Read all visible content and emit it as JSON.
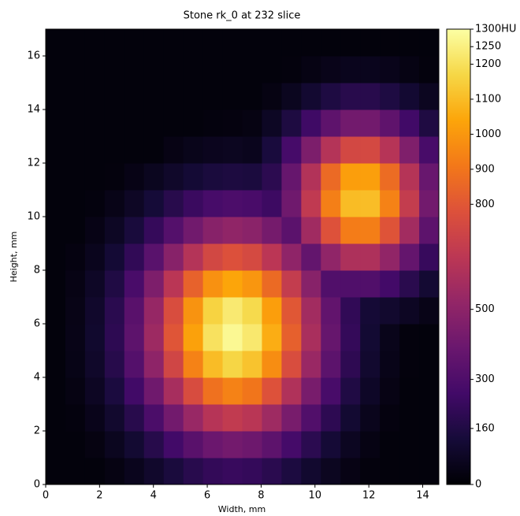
{
  "chart_data": {
    "type": "heatmap",
    "title": "Stone rk_0 at 232 slice",
    "xlabel": "Width, mm",
    "ylabel": "Height, mm",
    "xlim": [
      0,
      14.6
    ],
    "ylim": [
      0,
      17
    ],
    "xticks": [
      0,
      2,
      4,
      6,
      8,
      10,
      12,
      14
    ],
    "yticks": [
      0,
      2,
      4,
      6,
      8,
      10,
      12,
      14,
      16
    ],
    "colormap": "inferno",
    "zlim": [
      0,
      1300
    ],
    "colorbar_ticks": [
      0,
      160,
      300,
      500,
      800,
      900,
      1000,
      1100,
      1200,
      1250,
      {
        "value": 1300,
        "label": "1300HU"
      }
    ],
    "z": [
      [
        20,
        20,
        20,
        35,
        62,
        99,
        142,
        184,
        216,
        229,
        220,
        190,
        149,
        106,
        68,
        39,
        21,
        20,
        20,
        20
      ],
      [
        20,
        20,
        33,
        65,
        113,
        180,
        259,
        335,
        393,
        417,
        400,
        347,
        271,
        193,
        123,
        71,
        38,
        20,
        20,
        20
      ],
      [
        20,
        25,
        53,
        104,
        182,
        289,
        414,
        537,
        630,
        668,
        641,
        555,
        435,
        309,
        198,
        114,
        60,
        28,
        20,
        20
      ],
      [
        20,
        35,
        75,
        146,
        256,
        406,
        583,
        756,
        886,
        940,
        901,
        781,
        612,
        434,
        278,
        161,
        85,
        39,
        20,
        20
      ],
      [
        20,
        43,
        93,
        181,
        317,
        504,
        724,
        938,
        1100,
        1167,
        1119,
        970,
        760,
        539,
        345,
        200,
        105,
        49,
        21,
        20
      ],
      [
        20,
        47,
        102,
        198,
        347,
        552,
        792,
        1027,
        1204,
        1277,
        1225,
        1061,
        831,
        590,
        378,
        218,
        115,
        54,
        23,
        20
      ],
      [
        20,
        45,
        98,
        190,
        334,
        531,
        762,
        988,
        1159,
        1229,
        1179,
        1021,
        800,
        568,
        364,
        210,
        122,
        104,
        75,
        46
      ],
      [
        20,
        39,
        83,
        161,
        283,
        450,
        645,
        837,
        982,
        1041,
        998,
        865,
        678,
        481,
        308,
        307,
        308,
        262,
        189,
        116
      ],
      [
        20,
        29,
        62,
        120,
        211,
        336,
        482,
        625,
        733,
        777,
        745,
        646,
        506,
        366,
        510,
        603,
        605,
        515,
        372,
        228
      ],
      [
        20,
        20,
        41,
        79,
        139,
        221,
        317,
        412,
        483,
        512,
        491,
        425,
        341,
        560,
        781,
        923,
        926,
        788,
        569,
        348
      ],
      [
        20,
        20,
        24,
        46,
        80,
        127,
        182,
        236,
        277,
        294,
        282,
        244,
        406,
        667,
        930,
        1099,
        1103,
        939,
        678,
        415
      ],
      [
        20,
        20,
        20,
        23,
        41,
        65,
        93,
        121,
        141,
        150,
        144,
        194,
        377,
        619,
        863,
        1020,
        1023,
        871,
        629,
        385
      ],
      [
        20,
        20,
        20,
        20,
        20,
        20,
        40,
        55,
        64,
        68,
        62,
        140,
        272,
        447,
        624,
        737,
        740,
        630,
        455,
        278
      ],
      [
        20,
        20,
        20,
        20,
        20,
        20,
        20,
        20,
        25,
        27,
        35,
        79,
        153,
        251,
        351,
        415,
        416,
        354,
        256,
        156
      ],
      [
        20,
        20,
        20,
        20,
        20,
        20,
        20,
        20,
        20,
        20,
        20,
        35,
        67,
        110,
        154,
        182,
        182,
        155,
        112,
        69
      ],
      [
        20,
        20,
        20,
        20,
        20,
        20,
        20,
        20,
        20,
        20,
        20,
        20,
        23,
        37,
        52,
        62,
        62,
        53,
        38,
        23
      ],
      [
        20,
        20,
        20,
        20,
        20,
        20,
        20,
        20,
        20,
        20,
        20,
        20,
        20,
        20,
        20,
        20,
        20,
        20,
        20,
        20
      ]
    ]
  }
}
